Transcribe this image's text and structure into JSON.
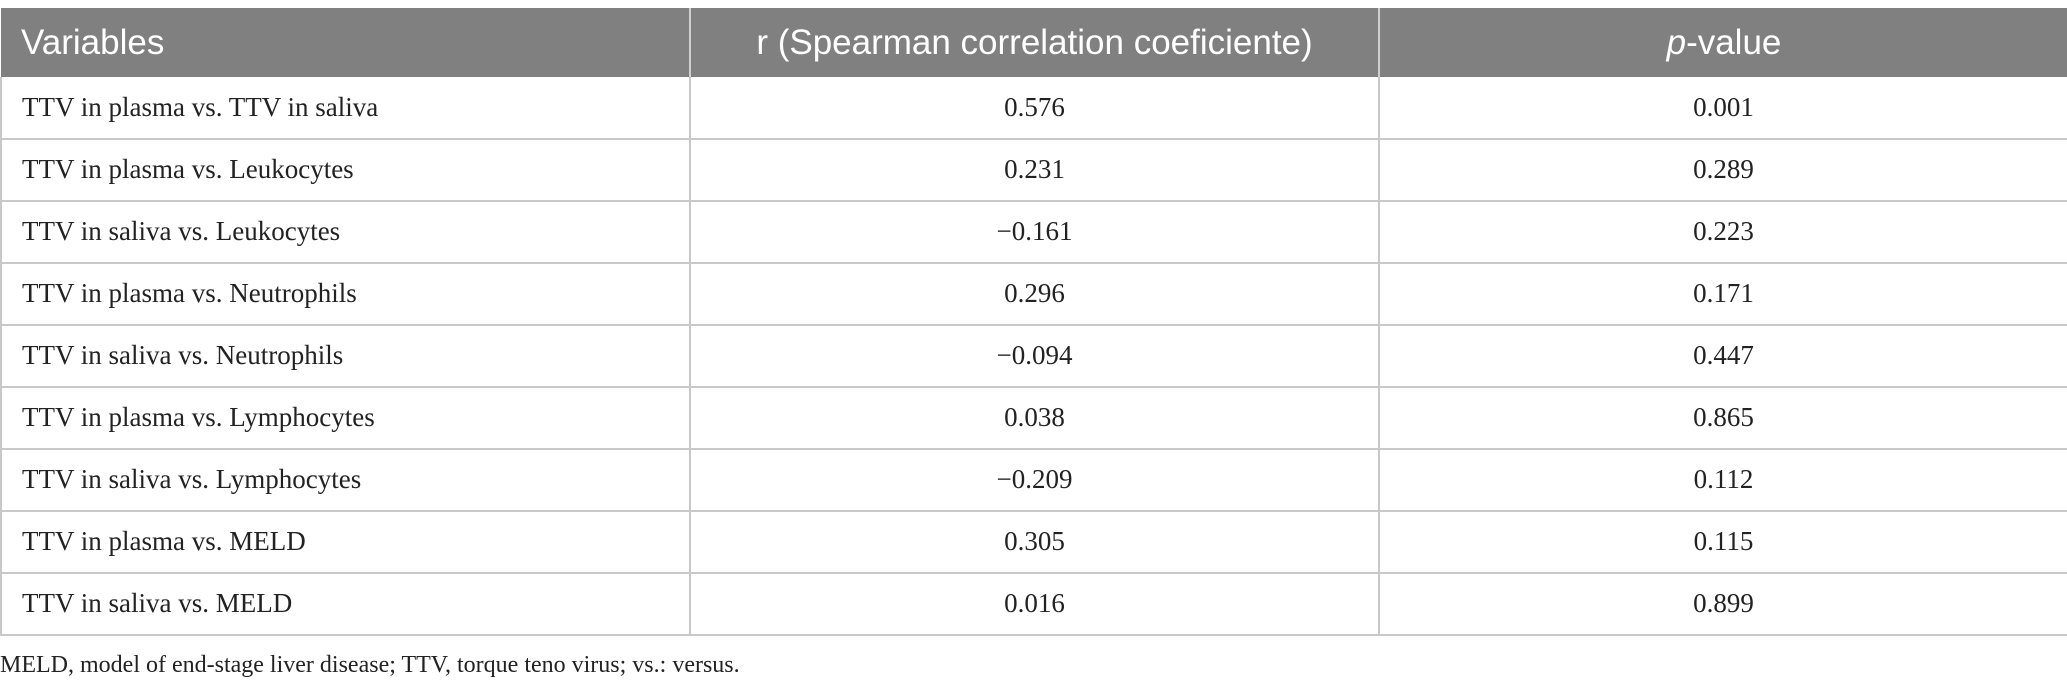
{
  "table": {
    "headers": {
      "variables": "Variables",
      "r": "r (Spearman correlation coeficiente)",
      "p_italic": "p",
      "p_rest": "-value"
    },
    "rows": [
      {
        "variables": "TTV in plasma vs. TTV in saliva",
        "r": "0.576",
        "p": "0.001"
      },
      {
        "variables": "TTV in plasma vs. Leukocytes",
        "r": "0.231",
        "p": "0.289"
      },
      {
        "variables": "TTV in saliva vs. Leukocytes",
        "r": "−0.161",
        "p": "0.223"
      },
      {
        "variables": "TTV in plasma vs. Neutrophils",
        "r": "0.296",
        "p": "0.171"
      },
      {
        "variables": "TTV in saliva vs. Neutrophils",
        "r": "−0.094",
        "p": "0.447"
      },
      {
        "variables": "TTV in plasma vs. Lymphocytes",
        "r": "0.038",
        "p": "0.865"
      },
      {
        "variables": "TTV in saliva vs. Lymphocytes",
        "r": "−0.209",
        "p": "0.112"
      },
      {
        "variables": "TTV in plasma vs. MELD",
        "r": "0.305",
        "p": "0.115"
      },
      {
        "variables": "TTV in saliva vs. MELD",
        "r": "0.016",
        "p": "0.899"
      }
    ]
  },
  "footnote": "MELD, model of end-stage liver disease; TTV, torque teno virus; vs.: versus."
}
